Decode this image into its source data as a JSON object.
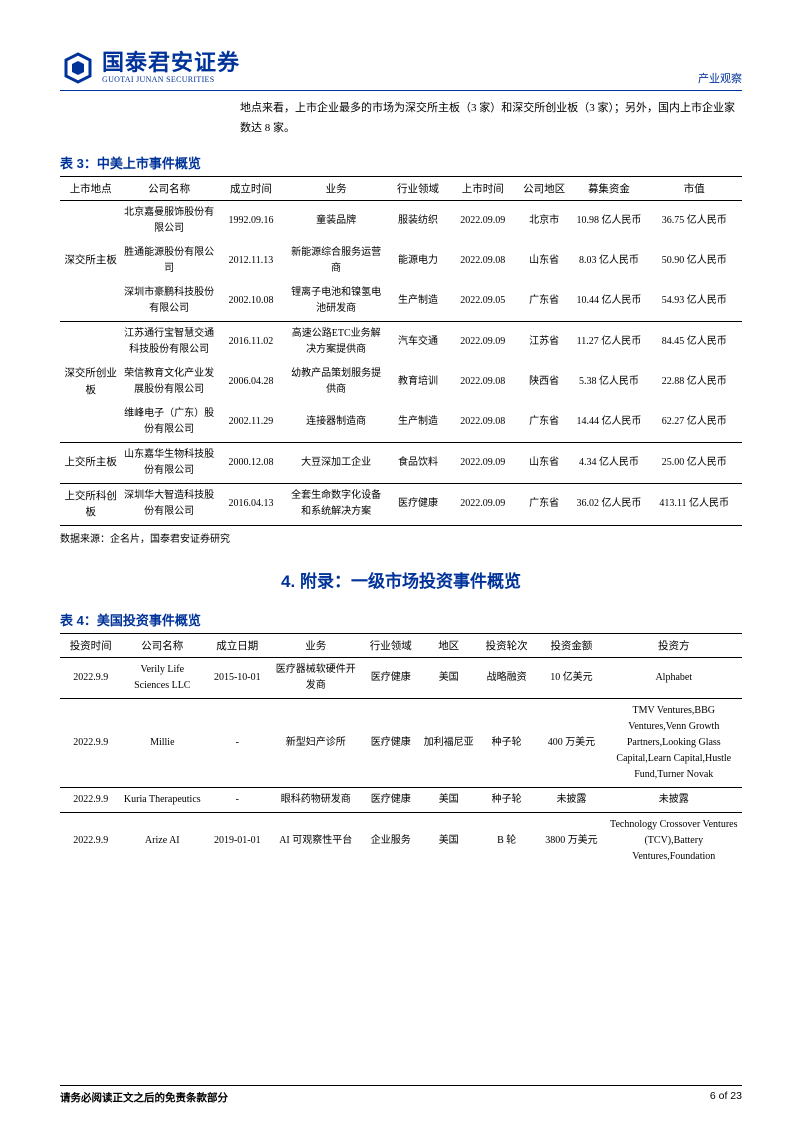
{
  "header": {
    "logo_cn": "国泰君安证券",
    "logo_en": "GUOTAI JUNAN SECURITIES",
    "right_label": "产业观察"
  },
  "intro": "地点来看，上市企业最多的市场为深交所主板（3 家）和深交所创业板（3 家）；另外，国内上市企业家数达 8 家。",
  "table3": {
    "title": "表 3：中美上市事件概览",
    "headers": [
      "上市地点",
      "公司名称",
      "成立时间",
      "业务",
      "行业领域",
      "上市时间",
      "公司地区",
      "募集资金",
      "市值"
    ],
    "groups": [
      {
        "label": "深交所主板",
        "rows": [
          [
            "北京嘉曼服饰股份有限公司",
            "1992.09.16",
            "童装品牌",
            "服装纺织",
            "2022.09.09",
            "北京市",
            "10.98 亿人民币",
            "36.75 亿人民币"
          ],
          [
            "胜通能源股份有限公司",
            "2012.11.13",
            "新能源综合服务运营商",
            "能源电力",
            "2022.09.08",
            "山东省",
            "8.03 亿人民币",
            "50.90 亿人民币"
          ],
          [
            "深圳市豪鹏科技股份有限公司",
            "2002.10.08",
            "锂离子电池和镍氢电池研发商",
            "生产制造",
            "2022.09.05",
            "广东省",
            "10.44 亿人民币",
            "54.93 亿人民币"
          ]
        ]
      },
      {
        "label": "深交所创业板",
        "rows": [
          [
            "江苏通行宝智慧交通科技股份有限公司",
            "2016.11.02",
            "高速公路ETC业务解决方案提供商",
            "汽车交通",
            "2022.09.09",
            "江苏省",
            "11.27 亿人民币",
            "84.45 亿人民币"
          ],
          [
            "荣信教育文化产业发展股份有限公司",
            "2006.04.28",
            "幼教产品策划服务提供商",
            "教育培训",
            "2022.09.08",
            "陕西省",
            "5.38 亿人民币",
            "22.88 亿人民币"
          ],
          [
            "维峰电子（广东）股份有限公司",
            "2002.11.29",
            "连接器制造商",
            "生产制造",
            "2022.09.08",
            "广东省",
            "14.44 亿人民币",
            "62.27 亿人民币"
          ]
        ]
      },
      {
        "label": "上交所主板",
        "rows": [
          [
            "山东嘉华生物科技股份有限公司",
            "2000.12.08",
            "大豆深加工企业",
            "食品饮料",
            "2022.09.09",
            "山东省",
            "4.34 亿人民币",
            "25.00 亿人民币"
          ]
        ]
      },
      {
        "label": "上交所科创板",
        "rows": [
          [
            "深圳华大智造科技股份有限公司",
            "2016.04.13",
            "全套生命数字化设备和系统解决方案",
            "医疗健康",
            "2022.09.09",
            "广东省",
            "36.02 亿人民币",
            "413.11 亿人民币"
          ]
        ]
      }
    ],
    "source": "数据来源：企名片，国泰君安证券研究"
  },
  "section4_title": "4. 附录：一级市场投资事件概览",
  "table4": {
    "title": "表 4：美国投资事件概览",
    "headers": [
      "投资时间",
      "公司名称",
      "成立日期",
      "业务",
      "行业领域",
      "地区",
      "投资轮次",
      "投资金额",
      "投资方"
    ],
    "rows": [
      [
        "2022.9.9",
        "Verily Life Sciences LLC",
        "2015-10-01",
        "医疗器械软硬件开发商",
        "医疗健康",
        "美国",
        "战略融资",
        "10 亿美元",
        "Alphabet"
      ],
      [
        "2022.9.9",
        "Millie",
        "-",
        "新型妇产诊所",
        "医疗健康",
        "加利福尼亚",
        "种子轮",
        "400 万美元",
        "TMV Ventures,BBG Ventures,Venn Growth Partners,Looking Glass Capital,Learn Capital,Hustle Fund,Turner Novak"
      ],
      [
        "2022.9.9",
        "Kuria Therapeutics",
        "-",
        "眼科药物研发商",
        "医疗健康",
        "美国",
        "种子轮",
        "未披露",
        "未披露"
      ],
      [
        "2022.9.9",
        "Arize AI",
        "2019-01-01",
        "AI 可观察性平台",
        "企业服务",
        "美国",
        "B 轮",
        "3800 万美元",
        "Technology Crossover Ventures (TCV),Battery Ventures,Foundation"
      ]
    ]
  },
  "footer": {
    "left": "请务必阅读正文之后的免责条款部分",
    "right": "6 of 23"
  },
  "colors": {
    "brand": "#003399",
    "text": "#000000",
    "bg": "#ffffff"
  }
}
